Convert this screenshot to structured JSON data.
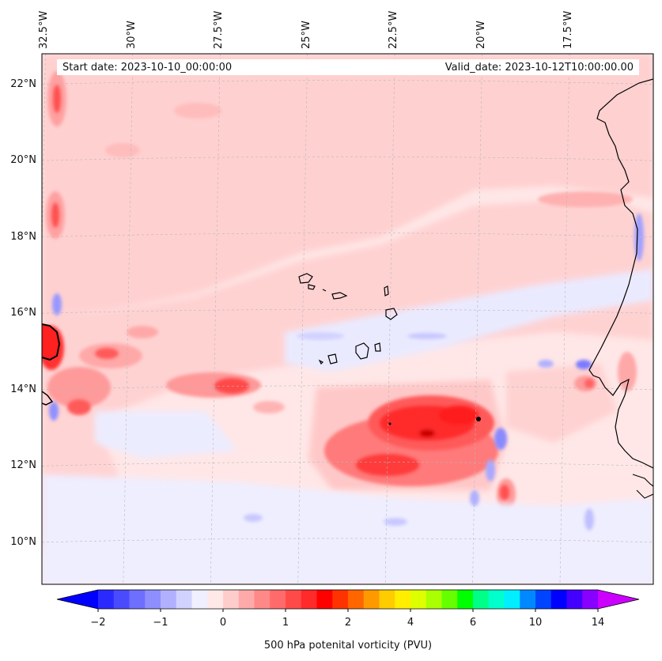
{
  "map": {
    "lon_labels": [
      {
        "text": "32.5°W",
        "lon": -32.5
      },
      {
        "text": "30°W",
        "lon": -30
      },
      {
        "text": "27.5°W",
        "lon": -27.5
      },
      {
        "text": "25°W",
        "lon": -25
      },
      {
        "text": "22.5°W",
        "lon": -22.5
      },
      {
        "text": "20°W",
        "lon": -20
      },
      {
        "text": "17.5°W",
        "lon": -17.5
      }
    ],
    "lat_labels": [
      {
        "text": "22°N",
        "lat": 22
      },
      {
        "text": "20°N",
        "lat": 20
      },
      {
        "text": "18°N",
        "lat": 18
      },
      {
        "text": "16°N",
        "lat": 16
      },
      {
        "text": "14°N",
        "lat": 14
      },
      {
        "text": "12°N",
        "lat": 12
      },
      {
        "text": "10°N",
        "lat": 10
      }
    ],
    "extent": {
      "lon_min": -32.6,
      "lon_max": -15.1,
      "lat_min": 8.9,
      "lat_max": 22.8
    },
    "start_date": "Start date: 2023-10-10_00:00:00",
    "valid_date": "Valid_date: 2023-10-12T10:00:00.00",
    "colors": {
      "background": "#ffe7e7",
      "light_pink": "#ffcccc",
      "pink": "#ffb0b0",
      "red": "#ff4040",
      "dark_red": "#ff1010",
      "light_blue": "#e9e9ff",
      "blue": "#c8c8ff"
    }
  },
  "colorbar": {
    "label": "500 hPa potenital vorticity (PVU)",
    "ticks": [
      "−2",
      "−1",
      "0",
      "1",
      "2",
      "4",
      "6",
      "10",
      "14"
    ],
    "colors": [
      "#0000ff",
      "#2a2aff",
      "#4a4aff",
      "#6e6eff",
      "#8e8eff",
      "#b0b0ff",
      "#d2d2ff",
      "#efefff",
      "#ffe8e8",
      "#ffcccc",
      "#ffaaaa",
      "#ff8888",
      "#ff6a6a",
      "#ff4a4a",
      "#ff2a2a",
      "#ff0000",
      "#ff3300",
      "#ff6600",
      "#ff9900",
      "#ffcc00",
      "#ffee00",
      "#ddff00",
      "#aaff00",
      "#66ff00",
      "#00ff00",
      "#00ff88",
      "#00ffcc",
      "#00eeff",
      "#0088ff",
      "#0044ff",
      "#0000ff",
      "#4400ff",
      "#8800ff",
      "#cc00ff"
    ]
  }
}
